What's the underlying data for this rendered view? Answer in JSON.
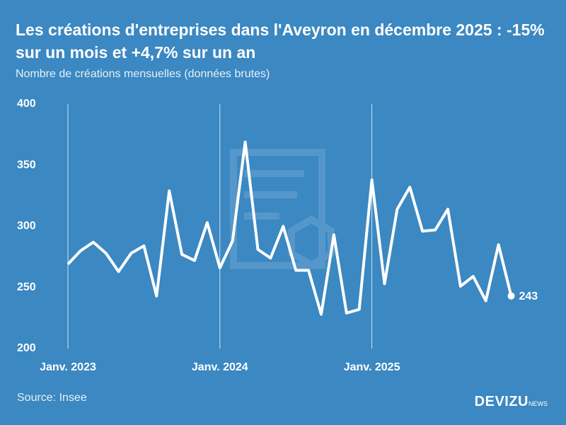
{
  "chart_data": {
    "type": "line",
    "title": "Les créations d'entreprises dans l'Aveyron en décembre 2025 : -15% sur un mois et +4,7% sur un an",
    "subtitle": "Nombre de créations mensuelles (données brutes)",
    "categories": [
      "Janv. 2023",
      null,
      null,
      null,
      null,
      null,
      null,
      null,
      null,
      null,
      null,
      null,
      "Janv. 2024",
      null,
      null,
      null,
      null,
      null,
      null,
      null,
      null,
      null,
      null,
      null,
      "Janv. 2025",
      null,
      null,
      null,
      null,
      null,
      null,
      null,
      null,
      null,
      null,
      null
    ],
    "series": [
      {
        "color": "#ffffff",
        "values": [
          269,
          280,
          287,
          278,
          263,
          278,
          284,
          243,
          329,
          277,
          272,
          303,
          266,
          288,
          369,
          281,
          274,
          300,
          264,
          264,
          228,
          293,
          229,
          232,
          338,
          253,
          314,
          332,
          296,
          297,
          314,
          251,
          259,
          239,
          285,
          243
        ]
      }
    ],
    "ylim": [
      200,
      400
    ],
    "yticks": [
      200,
      250,
      300,
      350,
      400
    ],
    "grid": true,
    "source": "Source: Insee"
  },
  "footer": {
    "brand": "DEVIZU",
    "brand_suffix": "NEWS"
  }
}
